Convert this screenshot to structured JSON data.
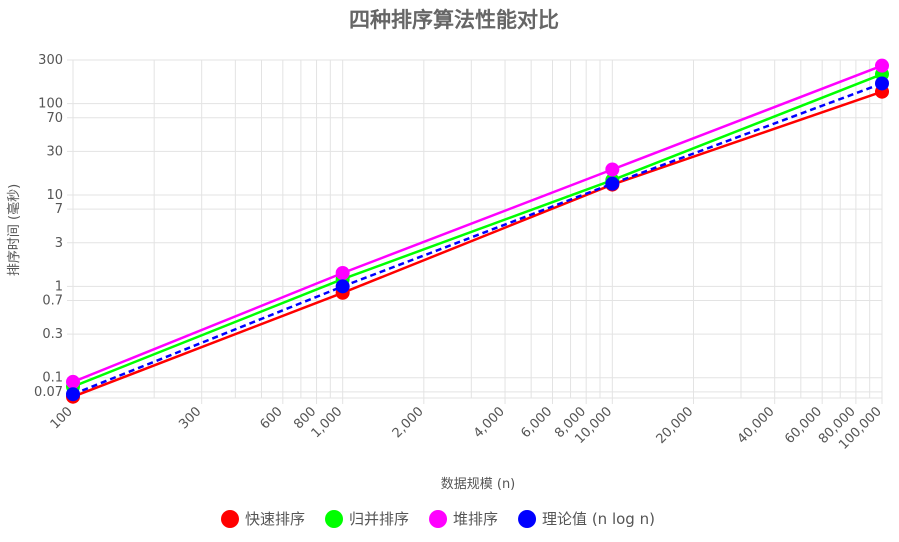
{
  "chart_data": {
    "type": "line",
    "title": "四种排序算法性能对比",
    "xlabel": "数据规模 (n)",
    "ylabel": "排序时间 (毫秒)",
    "xscale": "log",
    "yscale": "log",
    "xlim": [
      100,
      100000
    ],
    "ylim": [
      0.06,
      300
    ],
    "grid": true,
    "legend_position": "bottom",
    "x": [
      100,
      1000,
      10000,
      100000
    ],
    "x_ticks": [
      {
        "value": 100,
        "label": "100"
      },
      {
        "value": 300,
        "label": "300"
      },
      {
        "value": 600,
        "label": "600"
      },
      {
        "value": 800,
        "label": "800"
      },
      {
        "value": 1000,
        "label": "1,000"
      },
      {
        "value": 2000,
        "label": "2,000"
      },
      {
        "value": 4000,
        "label": "4,000"
      },
      {
        "value": 6000,
        "label": "6,000"
      },
      {
        "value": 8000,
        "label": "8,000"
      },
      {
        "value": 10000,
        "label": "10,000"
      },
      {
        "value": 20000,
        "label": "20,000"
      },
      {
        "value": 40000,
        "label": "40,000"
      },
      {
        "value": 60000,
        "label": "60,000"
      },
      {
        "value": 80000,
        "label": "80,000"
      },
      {
        "value": 100000,
        "label": "100,000"
      }
    ],
    "x_minor_grid": [
      200,
      400,
      500,
      700,
      900,
      3000,
      5000,
      7000,
      9000,
      30000,
      50000,
      70000,
      90000
    ],
    "y_ticks": [
      {
        "value": 0.07,
        "label": "0.07"
      },
      {
        "value": 0.1,
        "label": "0.1"
      },
      {
        "value": 0.3,
        "label": "0.3"
      },
      {
        "value": 0.7,
        "label": "0.7"
      },
      {
        "value": 1,
        "label": "1"
      },
      {
        "value": 3,
        "label": "3"
      },
      {
        "value": 7,
        "label": "7"
      },
      {
        "value": 10,
        "label": "10"
      },
      {
        "value": 30,
        "label": "30"
      },
      {
        "value": 70,
        "label": "70"
      },
      {
        "value": 100,
        "label": "100"
      },
      {
        "value": 300,
        "label": "300"
      }
    ],
    "series": [
      {
        "name": "快速排序",
        "color": "#ff0000",
        "dashed": false,
        "values": [
          0.062,
          0.85,
          13,
          135
        ]
      },
      {
        "name": "归并排序",
        "color": "#00ff00",
        "dashed": false,
        "values": [
          0.08,
          1.2,
          14.5,
          210
        ]
      },
      {
        "name": "堆排序",
        "color": "#ff00ff",
        "dashed": false,
        "values": [
          0.09,
          1.4,
          19,
          260
        ]
      },
      {
        "name": "理论值 (n log n)",
        "color": "#0000ff",
        "dashed": true,
        "values": [
          0.066,
          1.0,
          13.3,
          166
        ]
      }
    ]
  }
}
